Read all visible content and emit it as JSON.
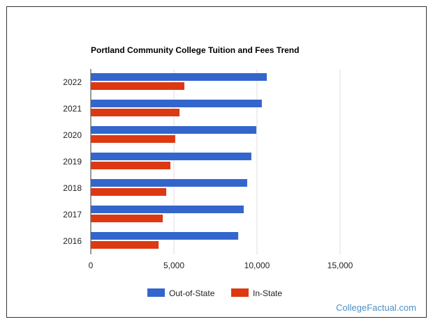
{
  "chart_data": {
    "type": "bar",
    "orientation": "horizontal",
    "title": "Portland Community College Tuition and Fees Trend",
    "categories": [
      "2022",
      "2021",
      "2020",
      "2019",
      "2018",
      "2017",
      "2016"
    ],
    "series": [
      {
        "name": "Out-of-State",
        "color": "#3366cc",
        "values": [
          10590,
          10290,
          9960,
          9660,
          9410,
          9200,
          8870
        ]
      },
      {
        "name": "In-State",
        "color": "#dc3912",
        "values": [
          5630,
          5340,
          5080,
          4790,
          4540,
          4330,
          4080
        ]
      }
    ],
    "xlim": [
      0,
      17500
    ],
    "xticks": [
      0,
      5000,
      10000,
      15000
    ],
    "xtick_labels": [
      "0",
      "5,000",
      "10,000",
      "15,000"
    ],
    "grid": true,
    "legend": "bottom"
  },
  "credit": "CollegeFactual.com"
}
